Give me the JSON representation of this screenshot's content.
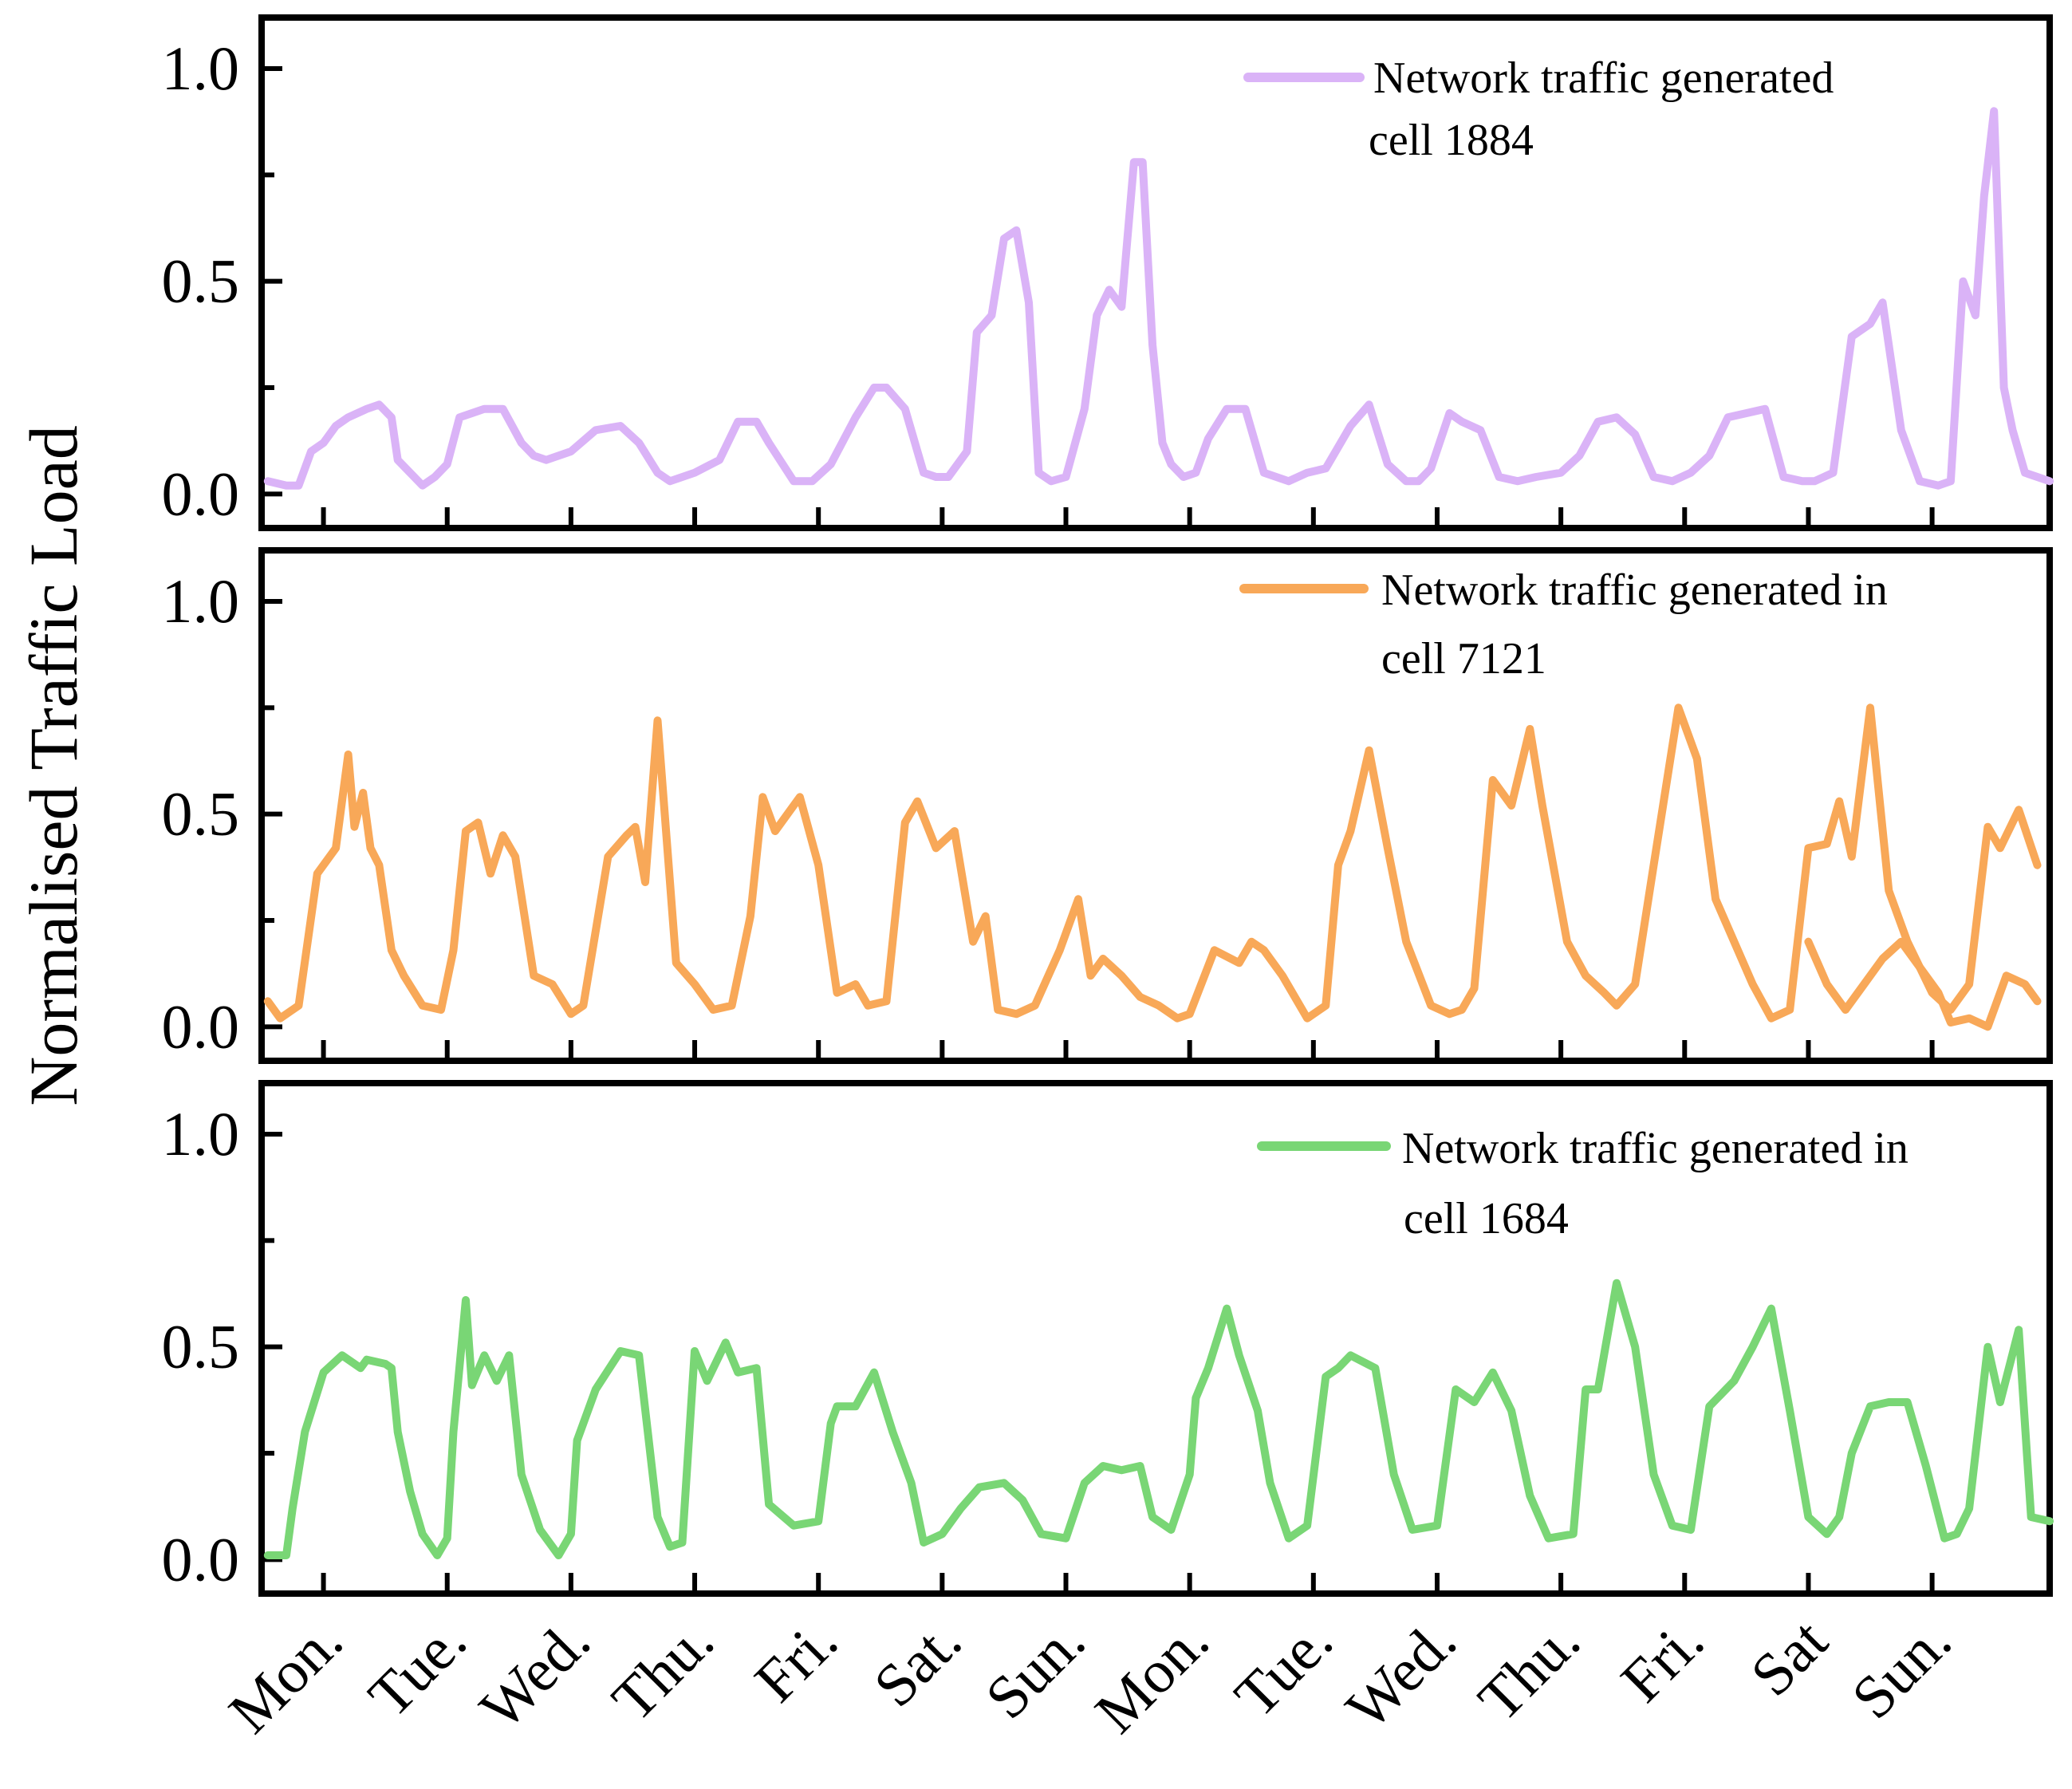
{
  "chart_data": {
    "type": "line",
    "ylabel": "Normalised Traffic Load",
    "days": [
      "Mon.",
      "Tue.",
      "Wed.",
      "Thu.",
      "Fri.",
      "Sat.",
      "Sun.",
      "Mon.",
      "Tue.",
      "Wed.",
      "Thu.",
      "Fri.",
      "Sat",
      "Sun."
    ],
    "y_ticks": [
      "0.0",
      "0.5",
      "1.0"
    ],
    "ylim": [
      -0.08,
      1.12
    ],
    "xlim": [
      -0.5,
      13.95
    ],
    "panels": [
      {
        "name": "cell-1884",
        "color": "#dab3f7",
        "legend": [
          "Network traffic generated",
          "cell 1884"
        ],
        "x": [
          -0.45,
          -0.3,
          -0.2,
          -0.1,
          0.0,
          0.1,
          0.2,
          0.35,
          0.45,
          0.55,
          0.6,
          0.7,
          0.8,
          0.9,
          1.0,
          1.1,
          1.2,
          1.3,
          1.45,
          1.6,
          1.7,
          1.8,
          2.0,
          2.2,
          2.4,
          2.55,
          2.7,
          2.8,
          3.0,
          3.2,
          3.35,
          3.5,
          3.6,
          3.8,
          3.95,
          4.1,
          4.3,
          4.45,
          4.55,
          4.7,
          4.85,
          4.95,
          5.05,
          5.2,
          5.28,
          5.4,
          5.5,
          5.6,
          5.7,
          5.78,
          5.88,
          6.0,
          6.15,
          6.25,
          6.35,
          6.45,
          6.55,
          6.62,
          6.7,
          6.78,
          6.85,
          6.95,
          7.05,
          7.15,
          7.3,
          7.45,
          7.6,
          7.8,
          7.95,
          8.1,
          8.3,
          8.45,
          8.6,
          8.75,
          8.85,
          8.95,
          9.1,
          9.2,
          9.35,
          9.5,
          9.65,
          9.8,
          10.0,
          10.15,
          10.3,
          10.45,
          10.6,
          10.75,
          10.9,
          11.05,
          11.2,
          11.35,
          11.5,
          11.65,
          11.8,
          11.95,
          12.05,
          12.2,
          12.35,
          12.5,
          12.6,
          12.75,
          12.9,
          13.05,
          13.15,
          13.25,
          13.35,
          13.42,
          13.5,
          13.58,
          13.65,
          13.75,
          13.85,
          13.95
        ],
        "y": [
          0.03,
          0.02,
          0.02,
          0.1,
          0.12,
          0.16,
          0.18,
          0.2,
          0.21,
          0.18,
          0.08,
          0.05,
          0.02,
          0.04,
          0.07,
          0.18,
          0.19,
          0.2,
          0.2,
          0.12,
          0.09,
          0.08,
          0.1,
          0.15,
          0.16,
          0.12,
          0.05,
          0.03,
          0.05,
          0.08,
          0.17,
          0.17,
          0.12,
          0.03,
          0.03,
          0.07,
          0.18,
          0.25,
          0.25,
          0.2,
          0.05,
          0.04,
          0.04,
          0.1,
          0.38,
          0.42,
          0.6,
          0.62,
          0.45,
          0.05,
          0.03,
          0.04,
          0.2,
          0.42,
          0.48,
          0.44,
          0.78,
          0.78,
          0.35,
          0.12,
          0.07,
          0.04,
          0.05,
          0.13,
          0.2,
          0.2,
          0.05,
          0.03,
          0.05,
          0.06,
          0.16,
          0.21,
          0.07,
          0.03,
          0.03,
          0.06,
          0.19,
          0.17,
          0.15,
          0.04,
          0.03,
          0.04,
          0.05,
          0.09,
          0.17,
          0.18,
          0.14,
          0.04,
          0.03,
          0.05,
          0.09,
          0.18,
          0.19,
          0.2,
          0.04,
          0.03,
          0.03,
          0.05,
          0.37,
          0.4,
          0.45,
          0.15,
          0.03,
          0.02,
          0.03,
          0.5,
          0.42,
          0.7,
          0.9,
          0.25,
          0.15,
          0.05,
          0.04,
          0.03
        ]
      },
      {
        "name": "cell-7121",
        "color": "#f8a858",
        "legend": [
          "Network traffic generated in",
          "cell 7121"
        ],
        "x": [
          -0.45,
          -0.35,
          -0.2,
          -0.05,
          0.1,
          0.2,
          0.25,
          0.32,
          0.38,
          0.45,
          0.55,
          0.65,
          0.8,
          0.95,
          1.05,
          1.15,
          1.25,
          1.35,
          1.45,
          1.55,
          1.7,
          1.85,
          2.0,
          2.1,
          2.3,
          2.45,
          2.52,
          2.6,
          2.7,
          2.85,
          3.0,
          3.15,
          3.3,
          3.45,
          3.55,
          3.65,
          3.85,
          4.0,
          4.15,
          4.3,
          4.4,
          4.55,
          4.7,
          4.8,
          4.95,
          5.1,
          5.25,
          5.35,
          5.45,
          5.6,
          5.75,
          5.95,
          6.1,
          6.2,
          6.3,
          6.45,
          6.6,
          6.75,
          6.9,
          7.0,
          7.2,
          7.4,
          7.5,
          7.6,
          7.75,
          7.95,
          8.1,
          8.2,
          8.3,
          8.45,
          8.6,
          8.75,
          8.95,
          9.1,
          9.2,
          9.3,
          9.45,
          9.6,
          9.75,
          9.85,
          10.05,
          10.2,
          10.35,
          10.45,
          10.6,
          10.75,
          10.95,
          11.1,
          11.25,
          11.4,
          11.55,
          11.7,
          11.85,
          12.0,
          12.15,
          12.25,
          12.35,
          12.5,
          12.65,
          12.8,
          13.0,
          13.15,
          13.3,
          13.45,
          13.55,
          13.7,
          13.85
        ],
        "y": [
          0.06,
          0.02,
          0.05,
          0.36,
          0.42,
          0.64,
          0.47,
          0.55,
          0.42,
          0.38,
          0.18,
          0.12,
          0.05,
          0.04,
          0.18,
          0.46,
          0.48,
          0.36,
          0.45,
          0.4,
          0.12,
          0.1,
          0.03,
          0.05,
          0.4,
          0.45,
          0.47,
          0.34,
          0.72,
          0.15,
          0.1,
          0.04,
          0.05,
          0.26,
          0.54,
          0.46,
          0.54,
          0.38,
          0.08,
          0.1,
          0.05,
          0.06,
          0.48,
          0.53,
          0.42,
          0.46,
          0.2,
          0.26,
          0.04,
          0.03,
          0.05,
          0.18,
          0.3,
          0.12,
          0.16,
          0.12,
          0.07,
          0.05,
          0.02,
          0.03,
          0.18,
          0.15,
          0.2,
          0.18,
          0.12,
          0.02,
          0.05,
          0.38,
          0.46,
          0.65,
          0.42,
          0.2,
          0.05,
          0.03,
          0.04,
          0.09,
          0.58,
          0.52,
          0.7,
          0.52,
          0.2,
          0.12,
          0.08,
          0.05,
          0.1,
          0.38,
          0.75,
          0.63,
          0.3,
          0.2,
          0.1,
          0.02,
          0.04,
          0.42,
          0.43,
          0.53,
          0.4,
          0.75,
          0.32,
          0.2,
          0.08,
          0.04,
          0.1,
          0.47,
          0.42,
          0.51,
          0.38
        ],
        "x2": [
          12.0,
          12.15,
          12.3,
          12.45,
          12.6,
          12.75,
          12.9,
          13.05,
          13.15,
          13.3,
          13.45,
          13.6,
          13.75,
          13.85
        ],
        "y2": [
          0.2,
          0.1,
          0.04,
          0.1,
          0.16,
          0.2,
          0.14,
          0.08,
          0.01,
          0.02,
          0.0,
          0.12,
          0.1,
          0.06
        ]
      },
      {
        "name": "cell-1684",
        "color": "#79d675",
        "legend": [
          "Network traffic generated in",
          "cell 1684"
        ],
        "x": [
          -0.45,
          -0.3,
          -0.25,
          -0.15,
          0.0,
          0.15,
          0.3,
          0.35,
          0.5,
          0.55,
          0.6,
          0.7,
          0.8,
          0.92,
          1.0,
          1.05,
          1.15,
          1.2,
          1.3,
          1.4,
          1.5,
          1.6,
          1.75,
          1.9,
          2.0,
          2.05,
          2.2,
          2.4,
          2.55,
          2.7,
          2.8,
          2.9,
          3.0,
          3.1,
          3.25,
          3.35,
          3.5,
          3.6,
          3.8,
          4.0,
          4.1,
          4.15,
          4.3,
          4.45,
          4.6,
          4.75,
          4.85,
          5.0,
          5.15,
          5.3,
          5.5,
          5.65,
          5.8,
          6.0,
          6.15,
          6.3,
          6.45,
          6.6,
          6.7,
          6.85,
          7.0,
          7.05,
          7.15,
          7.3,
          7.4,
          7.55,
          7.65,
          7.8,
          7.95,
          8.1,
          8.2,
          8.3,
          8.5,
          8.65,
          8.8,
          9.0,
          9.15,
          9.3,
          9.45,
          9.6,
          9.75,
          9.9,
          10.1,
          10.2,
          10.3,
          10.45,
          10.6,
          10.75,
          10.9,
          11.05,
          11.2,
          11.4,
          11.55,
          11.7,
          11.85,
          12.0,
          12.15,
          12.25,
          12.35,
          12.5,
          12.65,
          12.8,
          12.95,
          13.1,
          13.2,
          13.3,
          13.45,
          13.55,
          13.7,
          13.8,
          13.95
        ],
        "y": [
          0.01,
          0.01,
          0.12,
          0.3,
          0.44,
          0.48,
          0.45,
          0.47,
          0.46,
          0.45,
          0.3,
          0.16,
          0.06,
          0.01,
          0.05,
          0.3,
          0.61,
          0.41,
          0.48,
          0.42,
          0.48,
          0.2,
          0.07,
          0.01,
          0.06,
          0.28,
          0.4,
          0.49,
          0.48,
          0.1,
          0.03,
          0.04,
          0.49,
          0.42,
          0.51,
          0.44,
          0.45,
          0.13,
          0.08,
          0.09,
          0.32,
          0.36,
          0.36,
          0.44,
          0.3,
          0.18,
          0.04,
          0.06,
          0.12,
          0.17,
          0.18,
          0.14,
          0.06,
          0.05,
          0.18,
          0.22,
          0.21,
          0.22,
          0.1,
          0.07,
          0.2,
          0.38,
          0.45,
          0.59,
          0.48,
          0.35,
          0.18,
          0.05,
          0.08,
          0.43,
          0.45,
          0.48,
          0.45,
          0.2,
          0.07,
          0.08,
          0.4,
          0.37,
          0.44,
          0.35,
          0.15,
          0.05,
          0.06,
          0.4,
          0.4,
          0.65,
          0.5,
          0.2,
          0.08,
          0.07,
          0.36,
          0.42,
          0.5,
          0.59,
          0.35,
          0.1,
          0.06,
          0.1,
          0.25,
          0.36,
          0.37,
          0.37,
          0.22,
          0.05,
          0.06,
          0.12,
          0.5,
          0.37,
          0.54,
          0.1,
          0.09
        ]
      }
    ]
  }
}
